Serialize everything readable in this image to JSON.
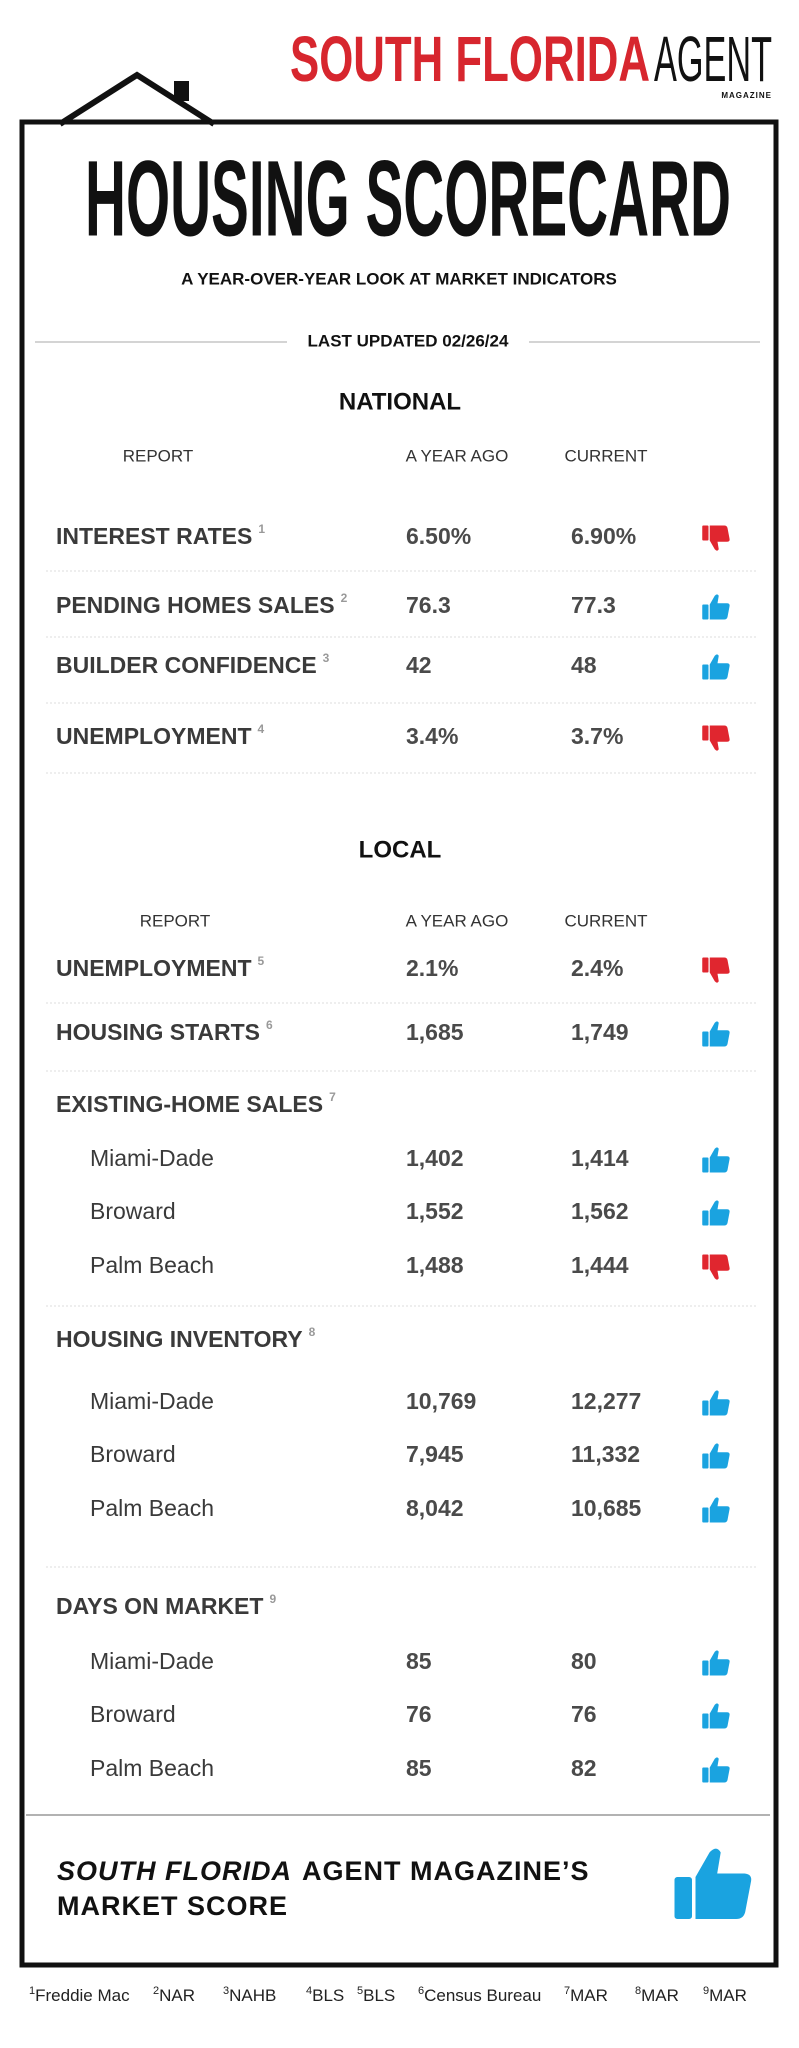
{
  "brand": {
    "name": "SOUTH FLORIDA",
    "name2": "AGENT",
    "tagline": "MAGAZINE"
  },
  "header": {
    "title": "HOUSING SCORECARD",
    "subtitle": "A YEAR-OVER-YEAR LOOK AT MARKET INDICATORS",
    "updated": "LAST UPDATED 02/26/24"
  },
  "sections": [
    {
      "title": "NATIONAL",
      "columns": [
        "REPORT",
        "A YEAR AGO",
        "CURRENT"
      ],
      "rows": [
        {
          "label": "INTEREST RATES",
          "note": "1",
          "year_ago": "6.50%",
          "current": "6.90%",
          "signal": "down"
        },
        {
          "label": "PENDING HOMES SALES",
          "note": "2",
          "year_ago": "76.3",
          "current": "77.3",
          "signal": "up"
        },
        {
          "label": "BUILDER CONFIDENCE",
          "note": "3",
          "year_ago": "42",
          "current": "48",
          "signal": "up"
        },
        {
          "label": "UNEMPLOYMENT",
          "note": "4",
          "year_ago": "3.4%",
          "current": "3.7%",
          "signal": "down"
        }
      ]
    },
    {
      "title": "LOCAL",
      "columns": [
        "REPORT",
        "A YEAR AGO",
        "CURRENT"
      ],
      "rows": [
        {
          "label": "UNEMPLOYMENT",
          "note": "5",
          "year_ago": "2.1%",
          "current": "2.4%",
          "signal": "down"
        },
        {
          "label": "HOUSING STARTS",
          "note": "6",
          "year_ago": "1,685",
          "current": "1,749",
          "signal": "up"
        },
        {
          "label": "EXISTING-HOME SALES",
          "note": "7",
          "items": [
            {
              "label": "Miami-Dade",
              "year_ago": "1,402",
              "current": "1,414",
              "signal": "up"
            },
            {
              "label": "Broward",
              "year_ago": "1,552",
              "current": "1,562",
              "signal": "up"
            },
            {
              "label": "Palm Beach",
              "year_ago": "1,488",
              "current": "1,444",
              "signal": "down"
            }
          ]
        },
        {
          "label": "HOUSING INVENTORY",
          "note": "8",
          "items": [
            {
              "label": "Miami-Dade",
              "year_ago": "10,769",
              "current": "12,277",
              "signal": "up"
            },
            {
              "label": "Broward",
              "year_ago": "7,945",
              "current": "11,332",
              "signal": "up"
            },
            {
              "label": "Palm Beach",
              "year_ago": "8,042",
              "current": "10,685",
              "signal": "up"
            }
          ]
        },
        {
          "label": "DAYS ON MARKET",
          "note": "9",
          "items": [
            {
              "label": "Miami-Dade",
              "year_ago": "85",
              "current": "80",
              "signal": "up"
            },
            {
              "label": "Broward",
              "year_ago": "76",
              "current": "76",
              "signal": "up"
            },
            {
              "label": "Palm Beach",
              "year_ago": "85",
              "current": "82",
              "signal": "up"
            }
          ]
        }
      ]
    }
  ],
  "market_score": {
    "brand": "SOUTH FLORIDA",
    "title": "AGENT MAGAZINE’S",
    "title2": "MARKET SCORE",
    "signal": "up"
  },
  "footnotes": [
    {
      "n": "1",
      "source": "Freddie Mac"
    },
    {
      "n": "2",
      "source": "NAR"
    },
    {
      "n": "3",
      "source": "NAHB"
    },
    {
      "n": "4",
      "source": "BLS"
    },
    {
      "n": "5",
      "source": "BLS"
    },
    {
      "n": "6",
      "source": "Census Bureau"
    },
    {
      "n": "7",
      "source": "MAR"
    },
    {
      "n": "8",
      "source": "MAR"
    },
    {
      "n": "9",
      "source": "MAR"
    }
  ]
}
